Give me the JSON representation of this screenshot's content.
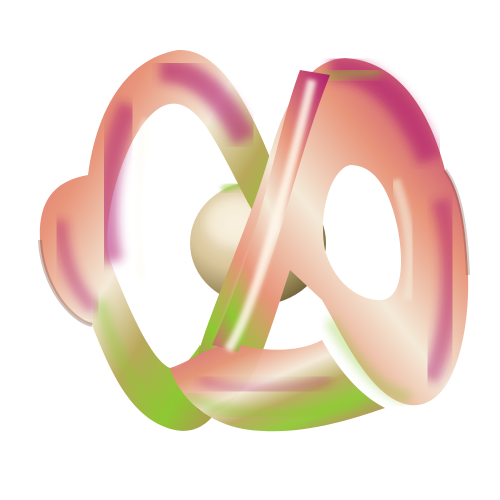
{
  "image": {
    "subject": "iridescent-figure-eight-knot-surface",
    "background_color": "#ffffff",
    "palette": {
      "magenta": "#b01a6e",
      "pink": "#d9607a",
      "salmon": "#e8957a",
      "peach": "#f0c0a0",
      "cream": "#f4ead8",
      "olive": "#b8a85a",
      "lime": "#8ec832",
      "green": "#5fb83a",
      "shadow": "#7a4a40"
    }
  }
}
